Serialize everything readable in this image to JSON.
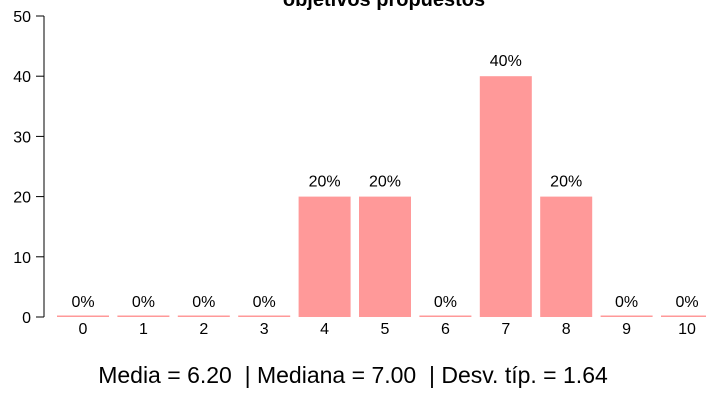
{
  "chart_data": {
    "type": "bar",
    "title": "objetivos propuestos",
    "xlabel": "",
    "ylabel": "",
    "categories": [
      "0",
      "1",
      "2",
      "3",
      "4",
      "5",
      "6",
      "7",
      "8",
      "9",
      "10"
    ],
    "values": [
      0,
      0,
      0,
      0,
      20,
      20,
      0,
      40,
      20,
      0,
      0
    ],
    "labels": [
      "0%",
      "0%",
      "0%",
      "0%",
      "20%",
      "20%",
      "0%",
      "40%",
      "20%",
      "0%",
      "0%"
    ],
    "ylim": [
      0,
      50
    ],
    "yticks": [
      "0",
      "10",
      "20",
      "30",
      "40",
      "50"
    ],
    "grid": false,
    "bar_color": "#ff9999"
  },
  "summary": {
    "mean_label": "Media = ",
    "mean_value": "6.20",
    "median_label": "Mediana = ",
    "median_value": "7.00",
    "sd_label": "Desv. típ. = ",
    "sd_value": "1.64",
    "separator": "|"
  }
}
